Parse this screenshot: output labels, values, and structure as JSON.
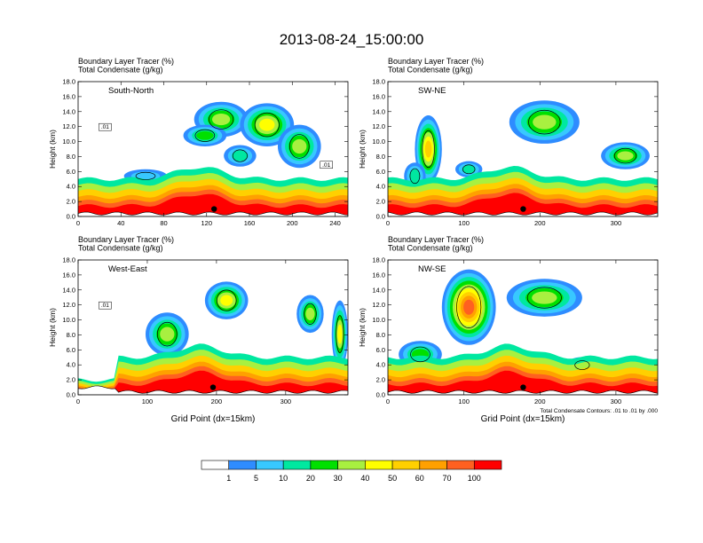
{
  "figure": {
    "title": "2013-08-24_15:00:00",
    "contour_note": "Total Condensate Contours: .01 to .01 by .000"
  },
  "colors": {
    "levels": [
      "#ffffff",
      "#2e8cff",
      "#38c8ff",
      "#00e8a0",
      "#00e000",
      "#a8f040",
      "#ffff00",
      "#ffd000",
      "#ffa000",
      "#ff6020",
      "#ff0000"
    ],
    "contour": "#000000",
    "terrain_marker": "#000000"
  },
  "chart_data": [
    {
      "type": "heatmap",
      "panel": "South-North",
      "title_lines": [
        "Boundary Layer Tracer    (%)",
        "Total Condensate    (g/kg)"
      ],
      "xlabel": "",
      "ylabel": "Height (km)",
      "xlim": [
        0,
        252
      ],
      "ylim": [
        0,
        18
      ],
      "xticks": [
        0,
        40,
        80,
        120,
        160,
        200,
        240
      ],
      "yticks": [
        "0.0",
        "2.0",
        "4.0",
        "6.0",
        "8.0",
        "10.0",
        "12.0",
        "14.0",
        "16.0",
        "18.0"
      ],
      "contour_labels": [
        ".01",
        ".01"
      ],
      "marker_x": 127,
      "marker_y": 1.0,
      "colorbar_levels": [
        1,
        5,
        10,
        20,
        30,
        40,
        50,
        60,
        70,
        100
      ]
    },
    {
      "type": "heatmap",
      "panel": "SW-NE",
      "title_lines": [
        "Boundary Layer Tracer    (%)",
        "Total Condensate    (g/kg)"
      ],
      "xlabel": "",
      "ylabel": "Height (km)",
      "xlim": [
        0,
        355
      ],
      "ylim": [
        0,
        18
      ],
      "xticks": [
        0,
        100,
        200,
        300
      ],
      "yticks": [
        "0.0",
        "2.0",
        "4.0",
        "6.0",
        "8.0",
        "10.0",
        "12.0",
        "14.0",
        "16.0",
        "18.0"
      ],
      "contour_labels": [],
      "marker_x": 178,
      "marker_y": 1.0,
      "colorbar_levels": [
        1,
        5,
        10,
        20,
        30,
        40,
        50,
        60,
        70,
        100
      ]
    },
    {
      "type": "heatmap",
      "panel": "West-East",
      "title_lines": [
        "Boundary Layer Tracer    (%)",
        "Total Condensate    (g/kg)"
      ],
      "xlabel": "Grid Point (dx=15km)",
      "ylabel": "Height (km)",
      "xlim": [
        0,
        390
      ],
      "ylim": [
        0,
        18
      ],
      "xticks": [
        0,
        100,
        200,
        300
      ],
      "yticks": [
        "0.0",
        "2.0",
        "4.0",
        "6.0",
        "8.0",
        "10.0",
        "12.0",
        "14.0",
        "16.0",
        "18.0"
      ],
      "contour_labels": [
        ".01"
      ],
      "marker_x": 195,
      "marker_y": 1.0,
      "colorbar_levels": [
        1,
        5,
        10,
        20,
        30,
        40,
        50,
        60,
        70,
        100
      ]
    },
    {
      "type": "heatmap",
      "panel": "NW-SE",
      "title_lines": [
        "Boundary Layer Tracer    (%)",
        "Total Condensate    (g/kg)"
      ],
      "xlabel": "Grid Point (dx=15km)",
      "ylabel": "Height (km)",
      "xlim": [
        0,
        355
      ],
      "ylim": [
        0,
        18
      ],
      "xticks": [
        0,
        100,
        200,
        300
      ],
      "yticks": [
        "0.0",
        "2.0",
        "4.0",
        "6.0",
        "8.0",
        "10.0",
        "12.0",
        "14.0",
        "16.0",
        "18.0"
      ],
      "contour_labels": [],
      "marker_x": 178,
      "marker_y": 1.0,
      "colorbar_levels": [
        1,
        5,
        10,
        20,
        30,
        40,
        50,
        60,
        70,
        100
      ]
    }
  ],
  "colorbar": {
    "labels": [
      "1",
      "5",
      "10",
      "20",
      "30",
      "40",
      "50",
      "60",
      "70",
      "100"
    ]
  }
}
